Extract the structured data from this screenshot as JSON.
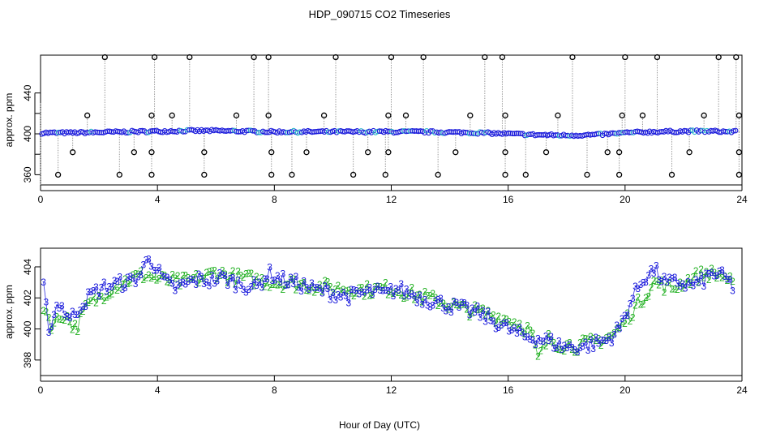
{
  "title": "HDP_090715  CO2 Timeseries",
  "xlabel": "Hour of Day (UTC)",
  "chart_data": [
    {
      "type": "scatter",
      "panel": "top",
      "ylabel": "approx. ppm",
      "xlim": [
        0,
        24
      ],
      "ylim": [
        350,
        477
      ],
      "xticks": [
        "0",
        "4",
        "8",
        "12",
        "16",
        "20",
        "24"
      ],
      "yticks": [
        "360",
        "400",
        "440"
      ],
      "yticks_extra": [
        "380",
        "420"
      ],
      "baseline": {
        "name": "main series",
        "x": [
          0,
          1,
          2,
          3,
          4,
          5,
          6,
          7,
          8,
          9,
          10,
          11,
          12,
          13,
          14,
          15,
          16,
          17,
          18,
          19,
          20,
          21,
          22,
          23,
          23.9
        ],
        "y": [
          401,
          401,
          401.5,
          402,
          402.5,
          403,
          403,
          402.5,
          402,
          402,
          402,
          402,
          402,
          402,
          401.5,
          401,
          400,
          399,
          398.5,
          399,
          401,
          402,
          402.5,
          402.5,
          402
        ]
      },
      "outliers_high": [
        2.2,
        3.9,
        5.1,
        7.3,
        7.8,
        10.1,
        12.0,
        13.1,
        15.2,
        15.8,
        18.2,
        20.0,
        21.1,
        23.2,
        23.8
      ],
      "outliers_mid": [
        1.6,
        3.8,
        4.5,
        6.7,
        7.8,
        9.7,
        11.9,
        12.5,
        14.7,
        15.9,
        17.7,
        19.9,
        20.6,
        22.7,
        23.9
      ],
      "outliers_low": [
        1.1,
        3.2,
        3.8,
        5.6,
        7.9,
        9.1,
        11.2,
        11.9,
        14.2,
        15.9,
        17.3,
        19.4,
        19.8,
        22.2,
        23.9
      ],
      "outliers_bottom": [
        0.6,
        2.7,
        3.8,
        5.6,
        7.9,
        8.6,
        10.7,
        11.8,
        13.6,
        15.9,
        16.6,
        18.7,
        19.8,
        21.6,
        23.9
      ],
      "outlier_values": {
        "high": 475,
        "mid": 418,
        "low": 382,
        "bottom": 360
      },
      "colors": {
        "points": "#1a1adb",
        "points_edge": "#2ab6c8",
        "outliers": "#000000",
        "drops": "#9a9a9a"
      }
    },
    {
      "type": "line",
      "panel": "bottom",
      "ylabel": "approx. ppm",
      "xlim": [
        0,
        24
      ],
      "ylim": [
        397,
        405.2
      ],
      "xticks": [
        "0",
        "4",
        "8",
        "12",
        "16",
        "20",
        "24"
      ],
      "yticks": [
        "398",
        "400",
        "402",
        "404"
      ],
      "series": [
        {
          "name": "2",
          "color": "#22b022",
          "x": [
            0.1,
            0.4,
            0.8,
            1.2,
            1.6,
            2.0,
            2.4,
            2.8,
            3.2,
            3.6,
            4.0,
            4.8,
            5.6,
            6.0,
            6.4,
            7.2,
            8.0,
            8.8,
            9.6,
            10.4,
            11.2,
            12.0,
            12.8,
            13.6,
            14.4,
            15.2,
            16.0,
            16.4,
            16.8,
            17.0,
            17.4,
            17.8,
            18.4,
            19.0,
            19.6,
            20.0,
            20.4,
            21.0,
            21.6,
            22.2,
            22.8,
            23.4,
            23.8
          ],
          "y": [
            401.5,
            400.2,
            401.0,
            400.0,
            401.5,
            402.0,
            402.6,
            403.0,
            403.3,
            403.5,
            403.2,
            403.0,
            403.3,
            403.7,
            403.4,
            403.2,
            403.0,
            402.9,
            402.7,
            402.6,
            402.5,
            402.6,
            402.2,
            401.8,
            401.3,
            401.0,
            400.6,
            400.3,
            399.8,
            398.0,
            399.4,
            399.0,
            398.9,
            399.2,
            399.6,
            400.5,
            401.5,
            403.0,
            402.6,
            403.2,
            403.6,
            403.4,
            402.5
          ]
        },
        {
          "name": "3",
          "color": "#1a1adb",
          "x": [
            0.1,
            0.3,
            0.6,
            1.0,
            1.4,
            1.8,
            2.2,
            2.6,
            3.0,
            3.4,
            3.7,
            4.2,
            4.6,
            5.0,
            5.4,
            5.8,
            6.2,
            6.6,
            7.0,
            7.4,
            7.8,
            8.2,
            8.6,
            9.0,
            9.4,
            9.8,
            10.2,
            10.6,
            11.0,
            11.4,
            11.8,
            12.2,
            12.6,
            13.0,
            13.4,
            13.8,
            14.2,
            14.6,
            15.0,
            15.4,
            15.8,
            16.2,
            16.6,
            17.0,
            17.4,
            17.8,
            18.2,
            18.6,
            19.0,
            19.4,
            19.8,
            20.2,
            20.6,
            21.0,
            21.4,
            21.8,
            22.2,
            22.6,
            23.0,
            23.4,
            23.7
          ],
          "y": [
            402.6,
            399.9,
            401.8,
            400.6,
            401.6,
            402.3,
            402.7,
            402.9,
            403.0,
            403.4,
            404.7,
            403.1,
            402.6,
            402.9,
            403.2,
            403.1,
            403.3,
            403.0,
            402.8,
            402.7,
            403.6,
            403.2,
            403.0,
            402.8,
            402.5,
            402.4,
            402.2,
            402.1,
            402.3,
            402.4,
            402.2,
            402.6,
            402.3,
            402.0,
            401.8,
            401.6,
            401.4,
            401.2,
            401.0,
            400.6,
            400.2,
            399.8,
            399.5,
            399.4,
            399.2,
            398.9,
            398.8,
            398.9,
            399.1,
            399.3,
            400.0,
            401.8,
            403.2,
            403.8,
            402.9,
            403.0,
            402.8,
            403.0,
            403.6,
            403.3,
            402.7
          ]
        }
      ]
    }
  ]
}
